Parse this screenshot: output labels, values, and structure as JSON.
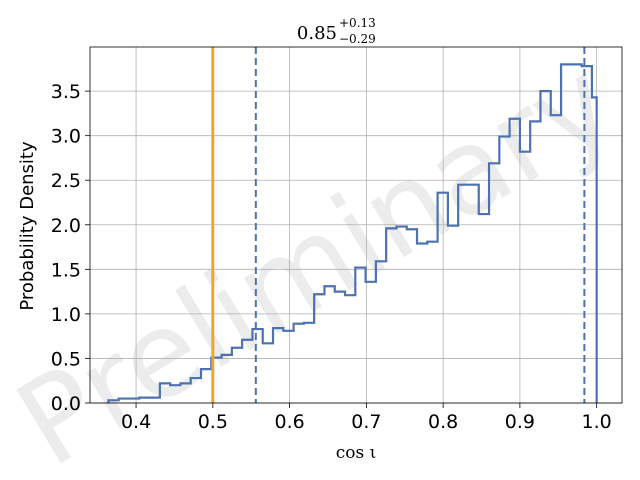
{
  "chart_data": {
    "type": "histogram",
    "title": {
      "value": "0.85",
      "upper": "+0.13",
      "lower": "−0.29"
    },
    "xlabel": "cos ι",
    "ylabel": "Probability Density",
    "xlim": [
      0.34,
      1.033
    ],
    "ylim": [
      0.0,
      3.995
    ],
    "xticks": [
      "0.4",
      "0.5",
      "0.6",
      "0.7",
      "0.8",
      "0.9",
      "1.0"
    ],
    "yticks": [
      "0.0",
      "0.5",
      "1.0",
      "1.5",
      "2.0",
      "2.5",
      "3.0",
      "3.5"
    ],
    "grid": true,
    "watermark": "Preliminary",
    "colors": {
      "histogram": "#4c72b0",
      "reference_line": "#f0a52a",
      "credible_interval": "#4c72b0",
      "grid": "#b0b0b0"
    },
    "reference_line_x": 0.5,
    "credible_interval_x": [
      0.556,
      0.984
    ],
    "bin_edges": [
      0.364,
      0.3774,
      0.3908,
      0.4042,
      0.4176,
      0.431,
      0.4444,
      0.4578,
      0.4712,
      0.4846,
      0.498,
      0.5114,
      0.5248,
      0.5382,
      0.5516,
      0.565,
      0.5784,
      0.5918,
      0.6052,
      0.6186,
      0.632,
      0.6454,
      0.6588,
      0.6722,
      0.6856,
      0.699,
      0.7124,
      0.7258,
      0.7392,
      0.7526,
      0.766,
      0.7794,
      0.7928,
      0.8062,
      0.8196,
      0.833,
      0.8464,
      0.8598,
      0.8732,
      0.8866,
      0.9,
      0.9134,
      0.9268,
      0.9402,
      0.9536,
      0.967,
      0.9804,
      0.9938,
      1.0
    ],
    "densities": [
      0.03,
      0.05,
      0.05,
      0.06,
      0.06,
      0.22,
      0.2,
      0.22,
      0.28,
      0.38,
      0.51,
      0.54,
      0.62,
      0.71,
      0.83,
      0.67,
      0.84,
      0.81,
      0.89,
      0.9,
      1.22,
      1.31,
      1.25,
      1.21,
      1.52,
      1.36,
      1.59,
      1.96,
      1.98,
      1.95,
      1.79,
      1.81,
      2.36,
      1.99,
      2.45,
      2.45,
      2.12,
      2.69,
      2.99,
      3.19,
      2.82,
      3.16,
      3.5,
      3.23,
      3.8,
      3.8,
      3.78,
      3.43
    ]
  }
}
